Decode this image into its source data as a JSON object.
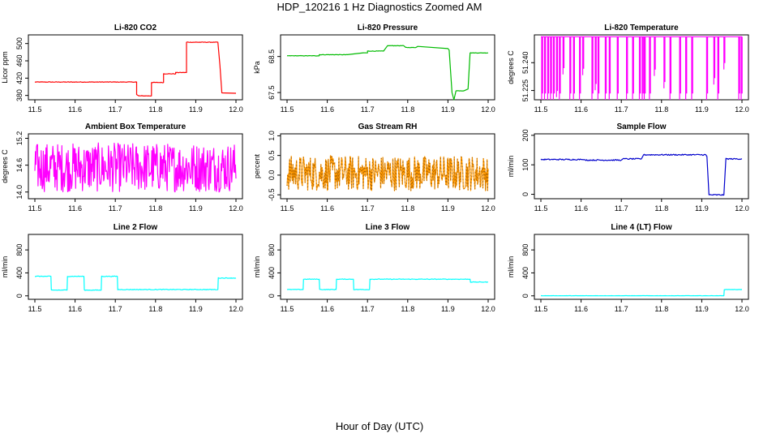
{
  "figure": {
    "title": "HDP_120216  1 Hz Diagnostics Zoomed AM",
    "xlabel": "Hour of Day (UTC)"
  },
  "chart_data": [
    {
      "type": "line",
      "title": "Li-820 CO2",
      "ylabel": "Licor ppm",
      "color": "#ff0000",
      "xlim": [
        11.5,
        12.0
      ],
      "ylim": [
        370,
        520
      ],
      "xticks": [
        "11.5",
        "11.6",
        "11.7",
        "11.8",
        "11.9",
        "12.0"
      ],
      "yticks": [
        {
          "v": 380,
          "t": "380"
        },
        {
          "v": 420,
          "t": "420"
        },
        {
          "v": 460,
          "t": "460"
        },
        {
          "v": 500,
          "t": "500"
        }
      ],
      "noise": 0.6,
      "points": [
        [
          11.5,
          411
        ],
        [
          11.753,
          411
        ],
        [
          11.753,
          382
        ],
        [
          11.758,
          379
        ],
        [
          11.79,
          379
        ],
        [
          11.79,
          410
        ],
        [
          11.82,
          410
        ],
        [
          11.82,
          430
        ],
        [
          11.85,
          430
        ],
        [
          11.85,
          433
        ],
        [
          11.877,
          433
        ],
        [
          11.877,
          503
        ],
        [
          11.955,
          503
        ],
        [
          11.96,
          450
        ],
        [
          11.965,
          386
        ],
        [
          12.0,
          385
        ]
      ]
    },
    {
      "type": "line",
      "title": "Li-820 Pressure",
      "ylabel": "kPa",
      "color": "#00bb00",
      "xlim": [
        11.5,
        12.0
      ],
      "ylim": [
        67.3,
        69.1
      ],
      "xticks": [
        "11.5",
        "11.6",
        "11.7",
        "11.8",
        "11.9",
        "12.0"
      ],
      "yticks": [
        {
          "v": 67.5,
          "t": "67.5"
        },
        {
          "v": 68.5,
          "t": "68.5"
        }
      ],
      "noise": 0.006,
      "points": [
        [
          11.5,
          68.52
        ],
        [
          11.58,
          68.52
        ],
        [
          11.58,
          68.55
        ],
        [
          11.65,
          68.55
        ],
        [
          11.69,
          68.6
        ],
        [
          11.7,
          68.6
        ],
        [
          11.7,
          68.65
        ],
        [
          11.74,
          68.65
        ],
        [
          11.75,
          68.8
        ],
        [
          11.79,
          68.8
        ],
        [
          11.795,
          68.75
        ],
        [
          11.82,
          68.75
        ],
        [
          11.825,
          68.78
        ],
        [
          11.9,
          68.72
        ],
        [
          11.903,
          68.68
        ],
        [
          11.91,
          67.5
        ],
        [
          11.915,
          67.3
        ],
        [
          11.92,
          67.55
        ],
        [
          11.94,
          67.55
        ],
        [
          11.95,
          67.6
        ],
        [
          11.955,
          68.6
        ],
        [
          12.0,
          68.6
        ]
      ]
    },
    {
      "type": "line",
      "title": "Li-820 Temperature",
      "ylabel": "degrees C",
      "color": "#ff00ff",
      "xlim": [
        11.5,
        12.0
      ],
      "ylim": [
        51.22,
        51.255
      ],
      "xticks": [
        "11.5",
        "11.6",
        "11.7",
        "11.8",
        "11.9",
        "12.0"
      ],
      "yticks": [
        {
          "v": 51.225,
          "t": "51.225"
        },
        {
          "v": 51.24,
          "t": "51.240"
        }
      ],
      "pattern": "spikes",
      "base": 51.254,
      "spikes": [
        11.502,
        11.509,
        11.517,
        11.524,
        11.531,
        11.539,
        11.546,
        11.555,
        11.572,
        11.581,
        11.596,
        11.604,
        11.627,
        11.635,
        11.642,
        11.66,
        11.67,
        11.69,
        11.713,
        11.728,
        11.745,
        11.752,
        11.757,
        11.77,
        11.782,
        11.806,
        11.821,
        11.845,
        11.86,
        11.875,
        11.912,
        11.93,
        11.94,
        11.955,
        11.992,
        11.998
      ]
    },
    {
      "type": "line",
      "title": "Ambient Box Temperature",
      "ylabel": "degrees C",
      "color": "#ff00ff",
      "xlim": [
        11.5,
        12.0
      ],
      "ylim": [
        13.85,
        15.3
      ],
      "xticks": [
        "11.5",
        "11.6",
        "11.7",
        "11.8",
        "11.9",
        "12.0"
      ],
      "yticks": [
        {
          "v": 14.0,
          "t": "14.0"
        },
        {
          "v": 14.6,
          "t": "14.6"
        },
        {
          "v": 15.2,
          "t": "15.2"
        }
      ],
      "pattern": "noise",
      "mean": 14.55,
      "amplitude": 0.55
    },
    {
      "type": "line",
      "title": "Gas Stream RH",
      "ylabel": "percent",
      "color": "#ff9900",
      "point_color": "#995500",
      "xlim": [
        11.5,
        12.0
      ],
      "ylim": [
        -0.6,
        1.05
      ],
      "xticks": [
        "11.5",
        "11.6",
        "11.7",
        "11.8",
        "11.9",
        "12.0"
      ],
      "yticks": [
        {
          "v": -0.5,
          "t": "-0.5"
        },
        {
          "v": 0.0,
          "t": "0.0"
        },
        {
          "v": 0.5,
          "t": "0.5"
        },
        {
          "v": 1.0,
          "t": "1.0"
        }
      ],
      "pattern": "noise",
      "mean": 0.05,
      "amplitude": 0.45
    },
    {
      "type": "line",
      "title": "Sample Flow",
      "ylabel": "ml/min",
      "color": "#0000cc",
      "xlim": [
        11.5,
        12.0
      ],
      "ylim": [
        -15,
        205
      ],
      "xticks": [
        "11.5",
        "11.6",
        "11.7",
        "11.8",
        "11.9",
        "12.0"
      ],
      "yticks": [
        {
          "v": 0,
          "t": "0"
        },
        {
          "v": 100,
          "t": "100"
        },
        {
          "v": 200,
          "t": "200"
        }
      ],
      "noise": 2,
      "points": [
        [
          11.5,
          118
        ],
        [
          11.6,
          118
        ],
        [
          11.61,
          116
        ],
        [
          11.7,
          116
        ],
        [
          11.705,
          120
        ],
        [
          11.75,
          120
        ],
        [
          11.755,
          134
        ],
        [
          11.91,
          134
        ],
        [
          11.913,
          128
        ],
        [
          11.918,
          -2
        ],
        [
          11.955,
          -2
        ],
        [
          11.96,
          120
        ],
        [
          12.0,
          120
        ]
      ]
    },
    {
      "type": "line",
      "title": "Line 2 Flow",
      "ylabel": "ml/min",
      "color": "#00ffff",
      "xlim": [
        11.5,
        12.0
      ],
      "ylim": [
        -60,
        1070
      ],
      "xticks": [
        "11.5",
        "11.6",
        "11.7",
        "11.8",
        "11.9",
        "12.0"
      ],
      "yticks": [
        {
          "v": 0,
          "t": "0"
        },
        {
          "v": 400,
          "t": "400"
        },
        {
          "v": 800,
          "t": "800"
        }
      ],
      "noise": 6,
      "points": [
        [
          11.5,
          340
        ],
        [
          11.54,
          340
        ],
        [
          11.541,
          100
        ],
        [
          11.58,
          100
        ],
        [
          11.581,
          340
        ],
        [
          11.622,
          340
        ],
        [
          11.623,
          100
        ],
        [
          11.665,
          100
        ],
        [
          11.666,
          340
        ],
        [
          11.705,
          340
        ],
        [
          11.706,
          110
        ],
        [
          11.955,
          110
        ],
        [
          11.956,
          310
        ],
        [
          12.0,
          310
        ]
      ]
    },
    {
      "type": "line",
      "title": "Line 3 Flow",
      "ylabel": "ml/min",
      "color": "#00ffff",
      "xlim": [
        11.5,
        12.0
      ],
      "ylim": [
        -60,
        1070
      ],
      "xticks": [
        "11.5",
        "11.6",
        "11.7",
        "11.8",
        "11.9",
        "12.0"
      ],
      "yticks": [
        {
          "v": 0,
          "t": "0"
        },
        {
          "v": 400,
          "t": "400"
        },
        {
          "v": 800,
          "t": "800"
        }
      ],
      "noise": 5,
      "points": [
        [
          11.5,
          110
        ],
        [
          11.54,
          110
        ],
        [
          11.541,
          290
        ],
        [
          11.58,
          290
        ],
        [
          11.581,
          110
        ],
        [
          11.622,
          110
        ],
        [
          11.623,
          290
        ],
        [
          11.665,
          290
        ],
        [
          11.666,
          110
        ],
        [
          11.705,
          110
        ],
        [
          11.706,
          290
        ],
        [
          11.955,
          290
        ],
        [
          11.956,
          240
        ],
        [
          12.0,
          240
        ]
      ]
    },
    {
      "type": "line",
      "title": "Line 4 (LT) Flow",
      "ylabel": "ml/min",
      "color": "#00ffff",
      "xlim": [
        11.5,
        12.0
      ],
      "ylim": [
        -60,
        1070
      ],
      "xticks": [
        "11.5",
        "11.6",
        "11.7",
        "11.8",
        "11.9",
        "12.0"
      ],
      "yticks": [
        {
          "v": 0,
          "t": "0"
        },
        {
          "v": 400,
          "t": "400"
        },
        {
          "v": 800,
          "t": "800"
        }
      ],
      "noise": 2,
      "points": [
        [
          11.5,
          2
        ],
        [
          11.955,
          2
        ],
        [
          11.956,
          110
        ],
        [
          12.0,
          110
        ]
      ]
    }
  ]
}
